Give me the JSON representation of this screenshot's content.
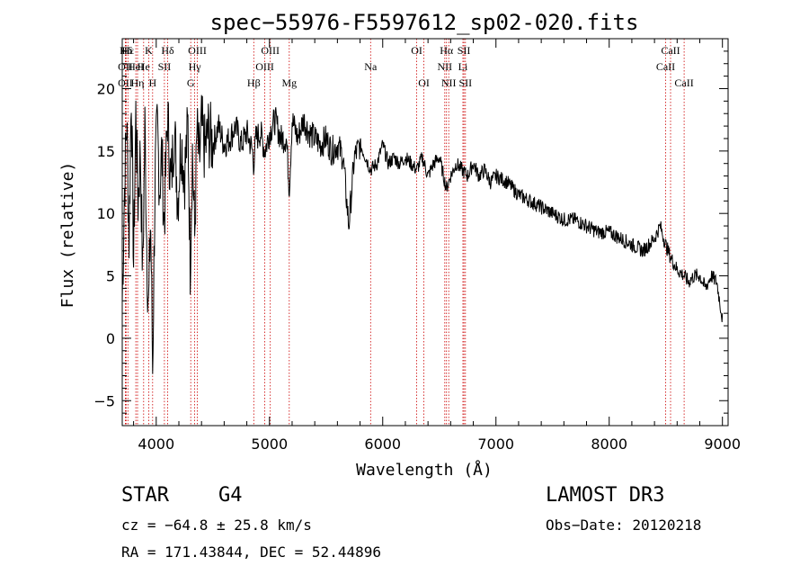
{
  "chart_data": {
    "type": "line",
    "title": "spec-55976-F5597612_sp02-020.fits",
    "xlabel": "Wavelength (Å)",
    "ylabel": "Flux (relative)",
    "xlim": [
      3700,
      9050
    ],
    "ylim": [
      -7,
      24
    ],
    "xticks": [
      4000,
      5000,
      6000,
      7000,
      8000,
      9000
    ],
    "yticks": [
      -5,
      0,
      5,
      10,
      15,
      20
    ],
    "colors": {
      "spectrum": "#000000",
      "line_markers": "#cc0000",
      "axes": "#000000"
    },
    "series": [
      {
        "name": "spectrum",
        "x": [
          3700,
          3720,
          3740,
          3760,
          3780,
          3800,
          3820,
          3840,
          3860,
          3880,
          3900,
          3920,
          3933,
          3950,
          3968,
          3990,
          4010,
          4030,
          4050,
          4070,
          4100,
          4130,
          4160,
          4190,
          4220,
          4250,
          4280,
          4300,
          4320,
          4340,
          4360,
          4380,
          4400,
          4430,
          4460,
          4500,
          4550,
          4600,
          4650,
          4700,
          4750,
          4800,
          4850,
          4861,
          4880,
          4920,
          4960,
          5000,
          5050,
          5100,
          5150,
          5175,
          5200,
          5250,
          5300,
          5350,
          5400,
          5450,
          5500,
          5550,
          5600,
          5650,
          5700,
          5750,
          5800,
          5850,
          5893,
          5950,
          6000,
          6050,
          6100,
          6150,
          6200,
          6250,
          6300,
          6350,
          6400,
          6450,
          6500,
          6550,
          6563,
          6600,
          6650,
          6700,
          6750,
          6800,
          6850,
          6900,
          6950,
          7000,
          7100,
          7200,
          7300,
          7400,
          7500,
          7600,
          7700,
          7800,
          7900,
          8000,
          8100,
          8200,
          8300,
          8400,
          8450,
          8498,
          8542,
          8600,
          8662,
          8700,
          8750,
          8800,
          8850,
          8900,
          8950,
          9000
        ],
        "y": [
          3.0,
          12.0,
          17.5,
          8.0,
          20.0,
          6.0,
          18.0,
          11.0,
          15.0,
          5.0,
          17.0,
          6.0,
          2.0,
          10.0,
          -2.5,
          13.0,
          17.0,
          12.0,
          15.0,
          9.0,
          18.0,
          12.0,
          17.0,
          11.0,
          16.0,
          13.0,
          17.0,
          6.0,
          15.0,
          8.0,
          16.5,
          14.0,
          17.0,
          15.0,
          16.5,
          15.5,
          17.0,
          15.5,
          16.0,
          17.0,
          15.5,
          16.5,
          15.0,
          14.0,
          16.0,
          16.5,
          15.0,
          16.5,
          17.5,
          16.0,
          16.0,
          12.0,
          17.5,
          16.0,
          17.5,
          16.5,
          16.0,
          15.5,
          16.0,
          15.0,
          15.5,
          14.5,
          9.0,
          14.5,
          15.5,
          14.5,
          13.5,
          14.0,
          15.5,
          14.0,
          14.5,
          14.0,
          14.5,
          14.0,
          13.5,
          14.5,
          13.0,
          14.0,
          14.5,
          12.5,
          12.0,
          13.0,
          14.0,
          13.5,
          13.0,
          14.0,
          13.0,
          13.5,
          12.5,
          13.0,
          12.5,
          11.5,
          11.0,
          10.5,
          10.0,
          9.5,
          9.5,
          9.0,
          8.5,
          8.5,
          8.0,
          7.5,
          7.0,
          8.0,
          9.0,
          7.5,
          6.5,
          5.5,
          5.0,
          4.5,
          5.0,
          5.0,
          4.0,
          5.0,
          4.5,
          1.5
        ]
      }
    ],
    "spectral_lines": [
      {
        "label": "Hδ",
        "wavelength": 3734,
        "row": 0
      },
      {
        "label": "OII",
        "wavelength": 3727,
        "row": 1
      },
      {
        "label": "OII",
        "wavelength": 3727,
        "row": 2
      },
      {
        "label": "Hε",
        "wavelength": 3750,
        "row": 0
      },
      {
        "label": "HeI",
        "wavelength": 3820,
        "row": 1
      },
      {
        "label": "Hη",
        "wavelength": 3835,
        "row": 2
      },
      {
        "label": "K",
        "wavelength": 3933,
        "row": 0
      },
      {
        "label": "He",
        "wavelength": 3889,
        "row": 1
      },
      {
        "label": "SII",
        "wavelength": 4072,
        "row": 1
      },
      {
        "label": "H",
        "wavelength": 3968,
        "row": 2
      },
      {
        "label": "Hδ",
        "wavelength": 4101,
        "row": 0
      },
      {
        "label": "OIII",
        "wavelength": 4363,
        "row": 0
      },
      {
        "label": "Hγ",
        "wavelength": 4340,
        "row": 1
      },
      {
        "label": "G",
        "wavelength": 4305,
        "row": 2
      },
      {
        "label": "Hβ",
        "wavelength": 4861,
        "row": 2
      },
      {
        "label": "OIII",
        "wavelength": 5007,
        "row": 0
      },
      {
        "label": "OIII",
        "wavelength": 4959,
        "row": 1
      },
      {
        "label": "Mg",
        "wavelength": 5175,
        "row": 2
      },
      {
        "label": "Na",
        "wavelength": 5893,
        "row": 1
      },
      {
        "label": "OI",
        "wavelength": 6300,
        "row": 0
      },
      {
        "label": "OI",
        "wavelength": 6364,
        "row": 2
      },
      {
        "label": "Hα",
        "wavelength": 6563,
        "row": 0
      },
      {
        "label": "NII",
        "wavelength": 6548,
        "row": 1
      },
      {
        "label": "NII",
        "wavelength": 6583,
        "row": 2
      },
      {
        "label": "SII",
        "wavelength": 6717,
        "row": 0
      },
      {
        "label": "Li",
        "wavelength": 6708,
        "row": 1
      },
      {
        "label": "SII",
        "wavelength": 6731,
        "row": 2
      },
      {
        "label": "CaII",
        "wavelength": 8542,
        "row": 0
      },
      {
        "label": "CaII",
        "wavelength": 8498,
        "row": 1
      },
      {
        "label": "CaII",
        "wavelength": 8662,
        "row": 2
      }
    ]
  },
  "info": {
    "object_class": "STAR",
    "subclass": "G4",
    "survey": "LAMOST DR3",
    "cz": "cz = −64.8 ± 25.8 km/s",
    "obs_date": "Obs−Date: 20120218",
    "coords": "RA = 171.43844, DEC =  52.44896"
  }
}
